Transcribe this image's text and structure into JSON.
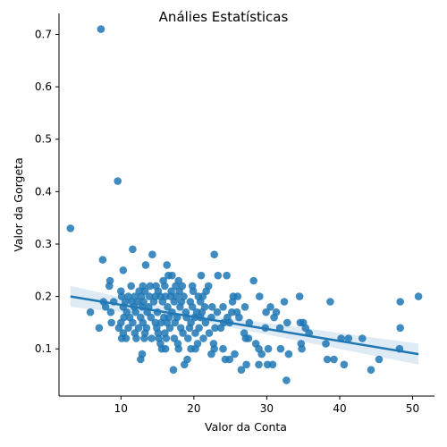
{
  "chart_data": {
    "type": "scatter",
    "title": "Análies Estatísticas",
    "xlabel": "Valor da Conta",
    "ylabel": "Valor da Gorgeta",
    "xlim": [
      1.5,
      53.0
    ],
    "ylim": [
      0.01,
      0.74
    ],
    "xticks": [
      10,
      20,
      30,
      40,
      50
    ],
    "yticks": [
      0.1,
      0.2,
      0.3,
      0.4,
      0.5,
      0.6,
      0.7
    ],
    "xtick_labels": [
      "10",
      "20",
      "30",
      "40",
      "50"
    ],
    "ytick_labels": [
      "0.1",
      "0.2",
      "0.3",
      "0.4",
      "0.5",
      "0.6",
      "0.7"
    ],
    "grid": false,
    "point_color": "#1f77b4",
    "regression": {
      "x": [
        3.07,
        50.81
      ],
      "y": [
        0.2,
        0.09
      ],
      "ci_lower": [
        0.18,
        0.07
      ],
      "ci_upper": [
        0.22,
        0.11
      ],
      "ci_mid_x": 20.0,
      "ci_mid_lower": [
        0.155
      ],
      "ci_mid_upper": [
        0.168
      ]
    },
    "points": [
      [
        7.25,
        0.71
      ],
      [
        9.55,
        0.42
      ],
      [
        3.07,
        0.33
      ],
      [
        11.6,
        0.29
      ],
      [
        7.5,
        0.27
      ],
      [
        14.3,
        0.28
      ],
      [
        13.4,
        0.26
      ],
      [
        16.3,
        0.26
      ],
      [
        10.3,
        0.25
      ],
      [
        17.0,
        0.24
      ],
      [
        16.5,
        0.24
      ],
      [
        21.0,
        0.24
      ],
      [
        23.3,
        0.24
      ],
      [
        24.5,
        0.24
      ],
      [
        8.5,
        0.23
      ],
      [
        15.8,
        0.23
      ],
      [
        17.9,
        0.23
      ],
      [
        22.8,
        0.28
      ],
      [
        28.2,
        0.23
      ],
      [
        8.4,
        0.22
      ],
      [
        11.4,
        0.22
      ],
      [
        13.0,
        0.22
      ],
      [
        14.0,
        0.22
      ],
      [
        14.8,
        0.22
      ],
      [
        16.0,
        0.22
      ],
      [
        17.5,
        0.22
      ],
      [
        18.4,
        0.22
      ],
      [
        19.8,
        0.22
      ],
      [
        22.0,
        0.22
      ],
      [
        10.0,
        0.21
      ],
      [
        12.5,
        0.21
      ],
      [
        13.3,
        0.21
      ],
      [
        15.1,
        0.21
      ],
      [
        16.9,
        0.21
      ],
      [
        18.0,
        0.21
      ],
      [
        19.9,
        0.21
      ],
      [
        21.7,
        0.21
      ],
      [
        10.1,
        0.2
      ],
      [
        11.0,
        0.2
      ],
      [
        11.9,
        0.2
      ],
      [
        12.8,
        0.2
      ],
      [
        13.9,
        0.2
      ],
      [
        14.7,
        0.2
      ],
      [
        15.4,
        0.2
      ],
      [
        16.1,
        0.2
      ],
      [
        16.8,
        0.2
      ],
      [
        17.6,
        0.2
      ],
      [
        18.6,
        0.2
      ],
      [
        20.6,
        0.2
      ],
      [
        21.2,
        0.2
      ],
      [
        25.4,
        0.2
      ],
      [
        26.0,
        0.2
      ],
      [
        29.0,
        0.2
      ],
      [
        34.5,
        0.2
      ],
      [
        50.8,
        0.2
      ],
      [
        7.6,
        0.19
      ],
      [
        9.0,
        0.19
      ],
      [
        10.6,
        0.19
      ],
      [
        11.5,
        0.19
      ],
      [
        12.3,
        0.19
      ],
      [
        13.1,
        0.19
      ],
      [
        14.5,
        0.19
      ],
      [
        15.7,
        0.19
      ],
      [
        17.3,
        0.19
      ],
      [
        18.3,
        0.19
      ],
      [
        19.5,
        0.19
      ],
      [
        20.9,
        0.19
      ],
      [
        25.3,
        0.19
      ],
      [
        32.4,
        0.19
      ],
      [
        38.7,
        0.19
      ],
      [
        48.3,
        0.19
      ],
      [
        7.9,
        0.18
      ],
      [
        10.3,
        0.18
      ],
      [
        11.8,
        0.18
      ],
      [
        12.9,
        0.18
      ],
      [
        13.8,
        0.18
      ],
      [
        16.4,
        0.18
      ],
      [
        18.1,
        0.18
      ],
      [
        19.8,
        0.18
      ],
      [
        21.5,
        0.18
      ],
      [
        22.5,
        0.18
      ],
      [
        24.0,
        0.18
      ],
      [
        27.0,
        0.18
      ],
      [
        30.5,
        0.18
      ],
      [
        8.6,
        0.17
      ],
      [
        10.8,
        0.17
      ],
      [
        12.0,
        0.17
      ],
      [
        13.6,
        0.17
      ],
      [
        15.0,
        0.17
      ],
      [
        17.0,
        0.17
      ],
      [
        18.9,
        0.17
      ],
      [
        20.4,
        0.17
      ],
      [
        21.1,
        0.17
      ],
      [
        23.2,
        0.17
      ],
      [
        25.2,
        0.17
      ],
      [
        25.9,
        0.17
      ],
      [
        29.9,
        0.17
      ],
      [
        31.3,
        0.17
      ],
      [
        5.8,
        0.17
      ],
      [
        10.4,
        0.16
      ],
      [
        11.2,
        0.16
      ],
      [
        12.7,
        0.16
      ],
      [
        14.1,
        0.16
      ],
      [
        15.9,
        0.16
      ],
      [
        16.6,
        0.16
      ],
      [
        17.7,
        0.16
      ],
      [
        19.0,
        0.16
      ],
      [
        20.1,
        0.16
      ],
      [
        20.9,
        0.16
      ],
      [
        22.4,
        0.16
      ],
      [
        24.6,
        0.16
      ],
      [
        26.2,
        0.16
      ],
      [
        31.0,
        0.16
      ],
      [
        8.7,
        0.15
      ],
      [
        10.0,
        0.15
      ],
      [
        11.6,
        0.15
      ],
      [
        13.0,
        0.15
      ],
      [
        14.7,
        0.15
      ],
      [
        15.5,
        0.15
      ],
      [
        16.3,
        0.15
      ],
      [
        17.4,
        0.15
      ],
      [
        19.6,
        0.15
      ],
      [
        21.6,
        0.15
      ],
      [
        24.1,
        0.15
      ],
      [
        24.9,
        0.15
      ],
      [
        27.6,
        0.15
      ],
      [
        32.8,
        0.15
      ],
      [
        34.6,
        0.15
      ],
      [
        35.0,
        0.15
      ],
      [
        7.0,
        0.14
      ],
      [
        9.7,
        0.14
      ],
      [
        11.0,
        0.14
      ],
      [
        12.4,
        0.14
      ],
      [
        13.5,
        0.14
      ],
      [
        14.9,
        0.14
      ],
      [
        16.7,
        0.14
      ],
      [
        18.2,
        0.14
      ],
      [
        19.4,
        0.14
      ],
      [
        20.7,
        0.14
      ],
      [
        22.9,
        0.14
      ],
      [
        23.7,
        0.14
      ],
      [
        29.8,
        0.14
      ],
      [
        31.8,
        0.14
      ],
      [
        35.3,
        0.14
      ],
      [
        48.3,
        0.14
      ],
      [
        10.3,
        0.13
      ],
      [
        11.9,
        0.13
      ],
      [
        13.3,
        0.13
      ],
      [
        15.1,
        0.13
      ],
      [
        16.0,
        0.13
      ],
      [
        18.5,
        0.13
      ],
      [
        20.2,
        0.13
      ],
      [
        22.1,
        0.13
      ],
      [
        26.9,
        0.13
      ],
      [
        35.8,
        0.13
      ],
      [
        10.1,
        0.12
      ],
      [
        10.7,
        0.12
      ],
      [
        12.1,
        0.12
      ],
      [
        13.2,
        0.12
      ],
      [
        14.2,
        0.12
      ],
      [
        15.2,
        0.12
      ],
      [
        16.2,
        0.12
      ],
      [
        17.3,
        0.12
      ],
      [
        19.2,
        0.12
      ],
      [
        21.3,
        0.12
      ],
      [
        27.1,
        0.12
      ],
      [
        27.5,
        0.12
      ],
      [
        40.2,
        0.12
      ],
      [
        41.2,
        0.12
      ],
      [
        43.1,
        0.12
      ],
      [
        15.4,
        0.11
      ],
      [
        17.8,
        0.11
      ],
      [
        20.5,
        0.11
      ],
      [
        22.7,
        0.11
      ],
      [
        28.5,
        0.11
      ],
      [
        34.7,
        0.11
      ],
      [
        38.1,
        0.11
      ],
      [
        15.6,
        0.1
      ],
      [
        16.1,
        0.1
      ],
      [
        17.9,
        0.1
      ],
      [
        19.6,
        0.1
      ],
      [
        20.2,
        0.1
      ],
      [
        22.8,
        0.1
      ],
      [
        24.0,
        0.1
      ],
      [
        28.9,
        0.1
      ],
      [
        30.2,
        0.1
      ],
      [
        31.9,
        0.1
      ],
      [
        34.8,
        0.1
      ],
      [
        48.2,
        0.1
      ],
      [
        12.9,
        0.09
      ],
      [
        22.4,
        0.09
      ],
      [
        25.6,
        0.09
      ],
      [
        29.3,
        0.09
      ],
      [
        33.0,
        0.09
      ],
      [
        12.7,
        0.08
      ],
      [
        19.1,
        0.08
      ],
      [
        24.3,
        0.08
      ],
      [
        24.9,
        0.08
      ],
      [
        38.3,
        0.08
      ],
      [
        39.2,
        0.08
      ],
      [
        45.4,
        0.08
      ],
      [
        18.7,
        0.07
      ],
      [
        27.2,
        0.07
      ],
      [
        28.9,
        0.07
      ],
      [
        30.1,
        0.07
      ],
      [
        30.8,
        0.07
      ],
      [
        40.6,
        0.07
      ],
      [
        17.2,
        0.06
      ],
      [
        26.5,
        0.06
      ],
      [
        44.3,
        0.06
      ],
      [
        32.7,
        0.04
      ]
    ]
  }
}
